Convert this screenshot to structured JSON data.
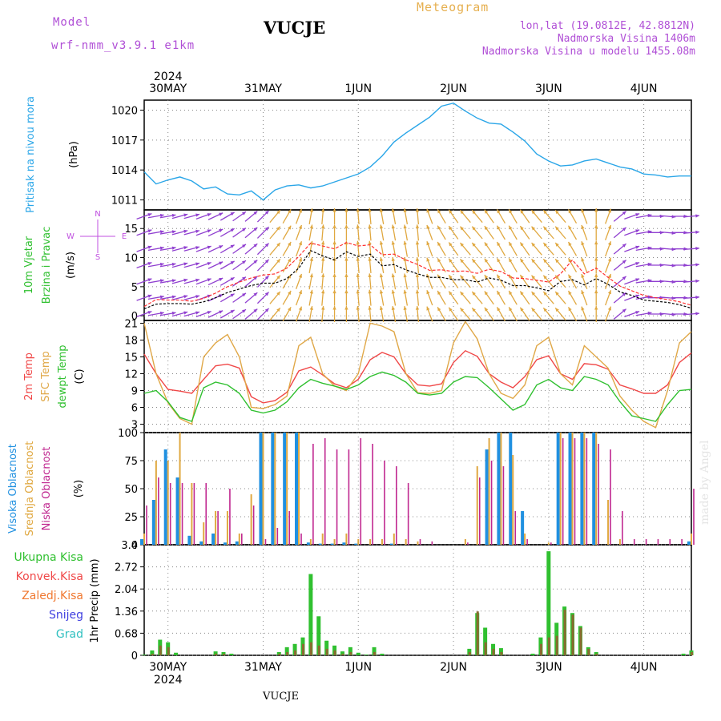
{
  "header": {
    "model_label": "Model",
    "model_name": "wrf-nmm_v3.9.1 e1km",
    "title": "VUCJE",
    "meteogram_label": "Meteogram",
    "lonlat": "lon,lat (19.0812E, 42.8812N)",
    "elevation": "Nadmorska Visina 1406m",
    "model_elevation": "Nadmorska Visina u modelu 1455.08m",
    "bottom_title": "VUCJE",
    "watermark": "made by Angel"
  },
  "colors": {
    "pressure": "#2aa6e8",
    "wind_speed": "#000000",
    "wind_gust": "#ff3030",
    "temp2m": "#f04848",
    "sfc_temp": "#e0a848",
    "dewpoint": "#30c030",
    "cloud_high": "#2090e0",
    "cloud_mid": "#e0a840",
    "cloud_low": "#c02890",
    "precip_total": "#30c030",
    "precip_conv": "#f04848",
    "precip_strat": "#f07830",
    "snow": "#4040e0",
    "graupel": "#30c0c0",
    "axis_label_pressure": "#2aa6e8",
    "axis_label_wind": "#30c030",
    "axis_label_temp_2m": "#f04848",
    "axis_label_temp_sfc": "#e0a848",
    "axis_label_dew": "#30c030",
    "dir_n": "#c050e0",
    "dir_s": "#e0a840",
    "dir_e": "#30c0d0",
    "dir_w": "#9040d0"
  },
  "time_axis": {
    "year_label": "2024",
    "days": [
      "30MAY",
      "31MAY",
      "1JUN",
      "2JUN",
      "3JUN",
      "4JUN"
    ],
    "hours_before_first_day": 6,
    "total_hours": 138
  },
  "chart_data": [
    {
      "type": "line",
      "panel": "pressure",
      "ylabel_lines": [
        "Pritisak na nivou mora",
        "(hPa)"
      ],
      "yticks": [
        "1011",
        "1014",
        "1017",
        "1020"
      ],
      "ylim": [
        1010.0,
        1021.0
      ],
      "x_hours": [
        0,
        3,
        6,
        9,
        12,
        15,
        18,
        21,
        24,
        27,
        30,
        33,
        36,
        39,
        42,
        45,
        48,
        51,
        54,
        57,
        60,
        63,
        66,
        69,
        72,
        75,
        78,
        81,
        84,
        87,
        90,
        93,
        96,
        99,
        102,
        105,
        108,
        111,
        114,
        117,
        120,
        123,
        126,
        129,
        132,
        135,
        138
      ],
      "values": [
        1013.8,
        1012.6,
        1013.0,
        1013.3,
        1012.9,
        1012.1,
        1012.3,
        1011.6,
        1011.5,
        1011.9,
        1011.0,
        1012.0,
        1012.4,
        1012.5,
        1012.2,
        1012.4,
        1012.8,
        1013.2,
        1013.6,
        1014.3,
        1015.4,
        1016.8,
        1017.7,
        1018.5,
        1019.3,
        1020.4,
        1020.7,
        1019.9,
        1019.2,
        1018.7,
        1018.6,
        1017.8,
        1016.9,
        1015.6,
        1014.9,
        1014.4,
        1014.5,
        1014.9,
        1015.1,
        1014.7,
        1014.3,
        1014.1,
        1013.6,
        1013.5,
        1013.3,
        1013.4,
        1013.4
      ]
    },
    {
      "type": "line",
      "panel": "wind",
      "ylabel_lines": [
        "10m Vjetar",
        "Brzina i Pravac",
        "(m/s)"
      ],
      "dir_legend": [
        "N",
        "E",
        "S",
        "W"
      ],
      "yticks": [
        "0",
        "5",
        "10",
        "15"
      ],
      "ylim": [
        -0.8,
        18.2
      ],
      "x_hours": [
        0,
        3,
        6,
        9,
        12,
        15,
        18,
        21,
        24,
        27,
        30,
        33,
        36,
        39,
        42,
        45,
        48,
        51,
        54,
        57,
        60,
        63,
        66,
        69,
        72,
        75,
        78,
        81,
        84,
        87,
        90,
        93,
        96,
        99,
        102,
        105,
        108,
        111,
        114,
        117,
        120,
        123,
        126,
        129,
        132,
        135,
        138
      ],
      "speed": [
        1.2,
        2.0,
        2.1,
        2.1,
        2.0,
        2.4,
        3.1,
        4.0,
        4.6,
        5.2,
        5.6,
        5.6,
        6.4,
        8.2,
        11.2,
        10.3,
        9.6,
        11.0,
        10.2,
        10.6,
        8.6,
        8.8,
        7.9,
        7.2,
        6.6,
        6.6,
        6.2,
        6.2,
        5.8,
        6.5,
        6.1,
        5.2,
        5.2,
        4.8,
        4.3,
        5.9,
        6.2,
        5.3,
        6.4,
        5.4,
        4.1,
        3.5,
        2.7,
        2.5,
        2.3,
        1.9,
        1.3
      ],
      "gust": [
        1.6,
        2.8,
        2.7,
        2.7,
        2.5,
        3.0,
        3.9,
        5.0,
        5.8,
        6.5,
        7.0,
        7.2,
        8.2,
        10.2,
        12.5,
        12.0,
        11.5,
        12.6,
        12.0,
        12.2,
        10.5,
        10.6,
        9.6,
        8.8,
        7.8,
        7.9,
        7.6,
        7.7,
        7.3,
        8.0,
        7.6,
        6.5,
        6.4,
        6.1,
        5.8,
        7.2,
        9.6,
        7.2,
        8.2,
        6.6,
        5.1,
        4.3,
        3.5,
        3.1,
        2.8,
        2.4,
        1.8
      ],
      "direction_deg": [
        250,
        260,
        260,
        255,
        255,
        250,
        245,
        240,
        235,
        230,
        225,
        220,
        210,
        200,
        190,
        185,
        180,
        180,
        175,
        175,
        170,
        170,
        170,
        175,
        160,
        150,
        145,
        140,
        140,
        145,
        150,
        150,
        145,
        140,
        140,
        140,
        150,
        160,
        180,
        200,
        230,
        250,
        260,
        270,
        275,
        270,
        265
      ]
    },
    {
      "type": "line",
      "panel": "temperature",
      "ylabel_lines": [
        "2m Temp",
        "SFC Temp",
        "dewpt Temp",
        "(C)"
      ],
      "yticks": [
        "3",
        "6",
        "9",
        "12",
        "15",
        "18",
        "21"
      ],
      "ylim": [
        1.5,
        21.5
      ],
      "x_hours": [
        0,
        3,
        6,
        9,
        12,
        15,
        18,
        21,
        24,
        27,
        30,
        33,
        36,
        39,
        42,
        45,
        48,
        51,
        54,
        57,
        60,
        63,
        66,
        69,
        72,
        75,
        78,
        81,
        84,
        87,
        90,
        93,
        96,
        99,
        102,
        105,
        108,
        111,
        114,
        117,
        120,
        123,
        126,
        129,
        132,
        135,
        138
      ],
      "series": [
        {
          "name": "2m Temp",
          "values": [
            15.5,
            12.0,
            9.2,
            8.9,
            8.5,
            11.0,
            13.4,
            13.7,
            13.0,
            7.9,
            6.8,
            7.2,
            8.7,
            12.5,
            13.2,
            11.8,
            10.2,
            9.5,
            11.0,
            14.5,
            15.8,
            15.0,
            12.0,
            10.0,
            9.8,
            10.2,
            14.0,
            16.1,
            15.1,
            12.0,
            10.5,
            9.5,
            11.5,
            14.5,
            15.2,
            12.0,
            11.0,
            13.8,
            13.6,
            12.8,
            10.0,
            9.3,
            8.5,
            8.5,
            10.0,
            14.0,
            15.7
          ]
        },
        {
          "name": "SFC Temp",
          "values": [
            21.0,
            12.0,
            6.8,
            4.0,
            3.0,
            15.0,
            17.5,
            19.0,
            15.0,
            6.0,
            5.8,
            6.5,
            8.0,
            17.0,
            18.5,
            12.0,
            9.8,
            9.0,
            12.0,
            21.0,
            20.5,
            19.5,
            12.0,
            8.6,
            8.5,
            9.0,
            17.5,
            21.3,
            18.2,
            12.0,
            8.5,
            7.6,
            10.0,
            17.0,
            18.5,
            12.0,
            10.0,
            17.0,
            15.0,
            13.0,
            8.0,
            5.5,
            3.5,
            2.4,
            9.0,
            17.5,
            19.5
          ]
        },
        {
          "name": "dewpt Temp",
          "values": [
            8.5,
            9.0,
            7.0,
            4.2,
            3.5,
            9.5,
            10.5,
            10.0,
            8.5,
            5.5,
            5.0,
            5.5,
            7.0,
            9.5,
            11.0,
            10.3,
            9.8,
            9.2,
            10.0,
            11.5,
            12.3,
            11.7,
            10.5,
            8.5,
            8.2,
            8.5,
            10.5,
            11.5,
            11.3,
            9.5,
            7.5,
            5.5,
            6.5,
            10.0,
            11.0,
            9.5,
            9.0,
            11.5,
            11.0,
            10.0,
            7.0,
            4.5,
            4.0,
            3.5,
            6.5,
            9.0,
            9.2
          ]
        }
      ]
    },
    {
      "type": "bar",
      "panel": "clouds",
      "ylabel_lines": [
        "Visoka Oblacnost",
        "Srednja Oblacnost",
        "Niska Oblacnost",
        "(%)"
      ],
      "yticks": [
        "0",
        "25",
        "50",
        "75",
        "100"
      ],
      "ylim": [
        0,
        100
      ],
      "x_hours": [
        0,
        3,
        6,
        9,
        12,
        15,
        18,
        21,
        24,
        27,
        30,
        33,
        36,
        39,
        42,
        45,
        48,
        51,
        54,
        57,
        60,
        63,
        66,
        69,
        72,
        75,
        78,
        81,
        84,
        87,
        90,
        93,
        96,
        99,
        102,
        105,
        108,
        111,
        114,
        117,
        120,
        123,
        126,
        129,
        132,
        135,
        138
      ],
      "series": [
        {
          "name": "Visoka Oblacnost",
          "values": [
            5,
            40,
            85,
            60,
            8,
            3,
            10,
            2,
            3,
            0,
            100,
            100,
            100,
            100,
            2,
            1,
            1,
            2,
            1,
            0,
            0,
            1,
            0,
            0,
            0,
            0,
            0,
            0,
            0,
            85,
            100,
            100,
            30,
            0,
            0,
            100,
            100,
            100,
            100,
            0,
            0,
            0,
            0,
            0,
            0,
            0,
            3
          ]
        },
        {
          "name": "Srednja Oblacnost",
          "values": [
            10,
            75,
            75,
            100,
            55,
            20,
            30,
            30,
            10,
            45,
            100,
            100,
            100,
            100,
            5,
            10,
            5,
            10,
            5,
            5,
            5,
            10,
            5,
            3,
            0,
            0,
            0,
            5,
            70,
            95,
            100,
            80,
            10,
            0,
            2,
            100,
            100,
            100,
            100,
            40,
            5,
            0,
            0,
            0,
            0,
            0,
            10
          ]
        },
        {
          "name": "Niska Oblacnost",
          "values": [
            35,
            60,
            55,
            55,
            55,
            55,
            30,
            50,
            10,
            35,
            5,
            15,
            30,
            10,
            90,
            95,
            85,
            85,
            95,
            90,
            75,
            70,
            55,
            5,
            3,
            0,
            0,
            2,
            60,
            75,
            70,
            30,
            5,
            0,
            2,
            95,
            95,
            95,
            90,
            85,
            30,
            5,
            5,
            5,
            5,
            5,
            50
          ]
        }
      ]
    },
    {
      "type": "bar",
      "panel": "precip",
      "legend": [
        "Ukupna Kisa",
        "Konvek.Kisa",
        "Zaledj.Kisa",
        "Snijeg",
        "Grad"
      ],
      "ylabel_lines": [
        "1hr Precip (mm)"
      ],
      "yticks": [
        "0",
        "0.68",
        "1.36",
        "2.04",
        "2.72",
        "3.4"
      ],
      "ylim": [
        0,
        3.4
      ],
      "x_hours": [
        0,
        2,
        4,
        6,
        8,
        10,
        12,
        14,
        16,
        18,
        20,
        22,
        24,
        26,
        28,
        30,
        32,
        34,
        36,
        38,
        40,
        42,
        44,
        46,
        48,
        50,
        52,
        54,
        56,
        58,
        60,
        62,
        64,
        66,
        68,
        70,
        72,
        74,
        76,
        78,
        80,
        82,
        84,
        86,
        88,
        90,
        92,
        94,
        96,
        98,
        100,
        102,
        104,
        106,
        108,
        110,
        112,
        114,
        116,
        118,
        120,
        122,
        124,
        126,
        128,
        130,
        132,
        134,
        136,
        138
      ],
      "series": [
        {
          "name": "Ukupna Kisa",
          "values": [
            0.02,
            0.15,
            0.48,
            0.4,
            0.08,
            0,
            0,
            0,
            0,
            0.12,
            0.1,
            0.05,
            0,
            0,
            0,
            0,
            0,
            0.1,
            0.25,
            0.35,
            0.55,
            2.5,
            1.2,
            0.45,
            0.3,
            0.12,
            0.25,
            0.08,
            0.02,
            0.25,
            0.05,
            0,
            0,
            0,
            0,
            0,
            0,
            0,
            0,
            0,
            0,
            0.2,
            1.3,
            0.85,
            0.35,
            0.22,
            0,
            0,
            0,
            0.05,
            0.55,
            3.2,
            1.0,
            1.5,
            1.3,
            0.9,
            0.25,
            0.1,
            0,
            0,
            0,
            0,
            0,
            0,
            0,
            0,
            0,
            0,
            0.05,
            0.15
          ]
        },
        {
          "name": "Konvek.Kisa",
          "values": [
            0,
            0.05,
            0.3,
            0.25,
            0,
            0,
            0,
            0,
            0,
            0.05,
            0.05,
            0,
            0,
            0,
            0,
            0,
            0,
            0.05,
            0.1,
            0.15,
            0.35,
            0.4,
            0.3,
            0.2,
            0.15,
            0.05,
            0.1,
            0,
            0,
            0.1,
            0,
            0,
            0,
            0,
            0,
            0,
            0,
            0,
            0,
            0,
            0,
            0.1,
            1.35,
            0.4,
            0.2,
            0.1,
            0,
            0,
            0,
            0,
            0.35,
            0.55,
            0.6,
            1.4,
            1.25,
            0.85,
            0.2,
            0.05,
            0,
            0,
            0,
            0,
            0,
            0,
            0,
            0,
            0,
            0,
            0,
            0.1
          ]
        }
      ]
    }
  ]
}
